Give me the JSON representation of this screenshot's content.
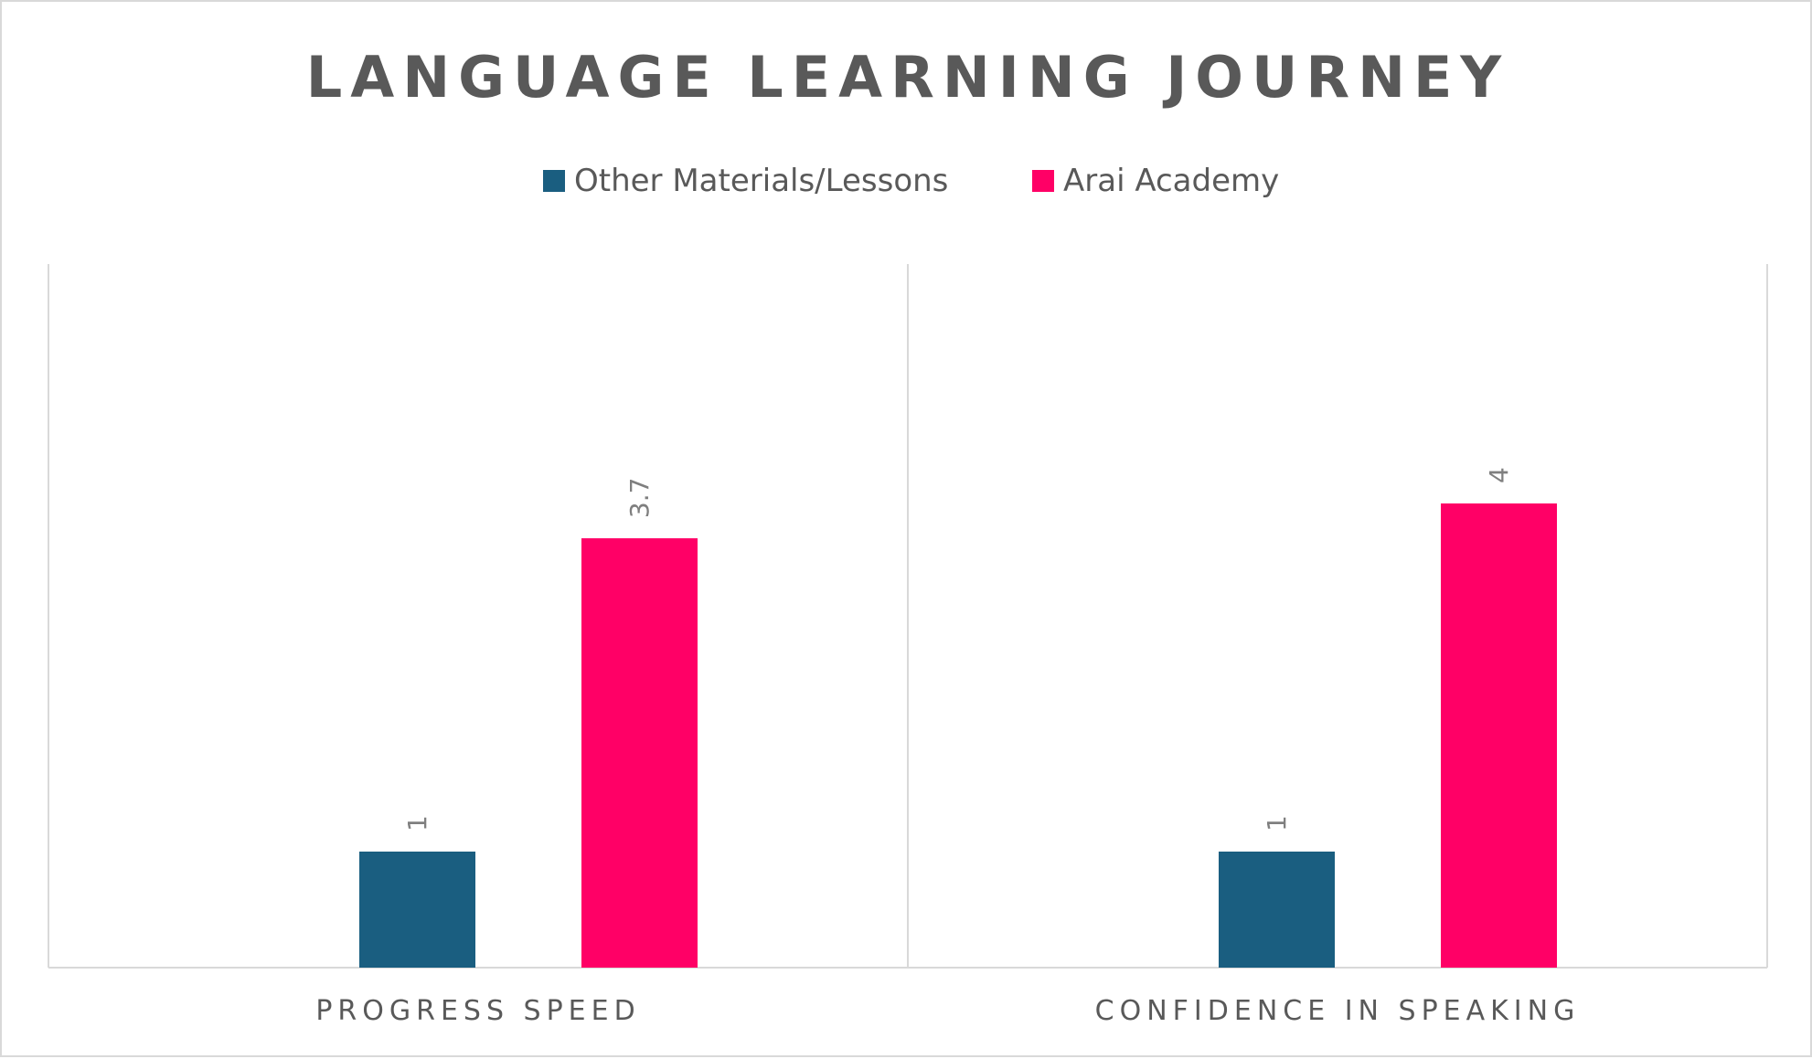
{
  "chart_data": {
    "type": "bar",
    "title": "LANGUAGE LEARNING JOURNEY",
    "categories": [
      "PROGRESS SPEED",
      "CONFIDENCE IN SPEAKING"
    ],
    "series": [
      {
        "name": "Other Materials/Lessons",
        "color": "#1a5e80",
        "values": [
          1,
          1
        ]
      },
      {
        "name": "Arai Academy",
        "color": "#ff0066",
        "values": [
          3.7,
          4
        ]
      }
    ],
    "value_labels": [
      [
        "1",
        "1"
      ],
      [
        "3.7",
        "4"
      ]
    ],
    "ylim": [
      0,
      4.2
    ],
    "legend_position": "top-center",
    "grid": false,
    "category_dividers": true
  }
}
